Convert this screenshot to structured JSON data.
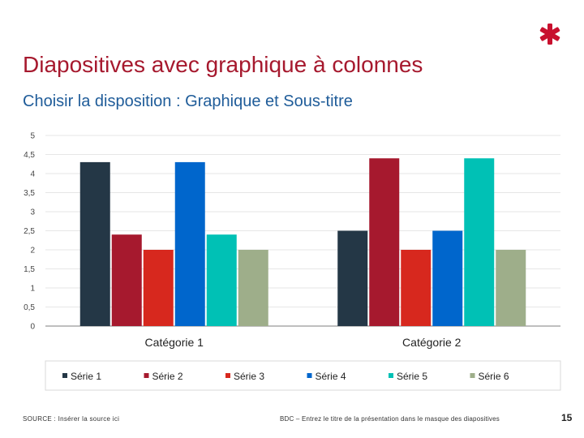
{
  "slide": {
    "title": "Diapositives avec graphique à colonnes",
    "subtitle": "Choisir la disposition : Graphique et Sous-titre",
    "footer_source": "SOURCE : Insérer la source ici",
    "footer_text": "BDC – Entrez le titre de la présentation dans le masque des diapositives",
    "page_number": "15",
    "logo_icon": "asterisk-logo-icon",
    "brand_color": "#c8102e"
  },
  "chart_data": {
    "type": "bar",
    "categories": [
      "Catégorie 1",
      "Catégorie 2"
    ],
    "series": [
      {
        "name": "Série 1",
        "values": [
          4.3,
          2.5
        ],
        "color": "#243746"
      },
      {
        "name": "Série 2",
        "values": [
          2.4,
          4.4
        ],
        "color": "#a6192e"
      },
      {
        "name": "Série 3",
        "values": [
          2.0,
          2.0
        ],
        "color": "#d7281e"
      },
      {
        "name": "Série 4",
        "values": [
          4.3,
          2.5
        ],
        "color": "#0066cc"
      },
      {
        "name": "Série 5",
        "values": [
          2.4,
          4.4
        ],
        "color": "#00c1b5"
      },
      {
        "name": "Série 6",
        "values": [
          2.0,
          2.0
        ],
        "color": "#9eae8a"
      }
    ],
    "y_ticks": [
      "0",
      "0,5",
      "1",
      "1,5",
      "2",
      "2,5",
      "3",
      "3,5",
      "4",
      "4,5",
      "5"
    ],
    "ylim": [
      0,
      5
    ],
    "grid": true,
    "legend": "bottom"
  }
}
